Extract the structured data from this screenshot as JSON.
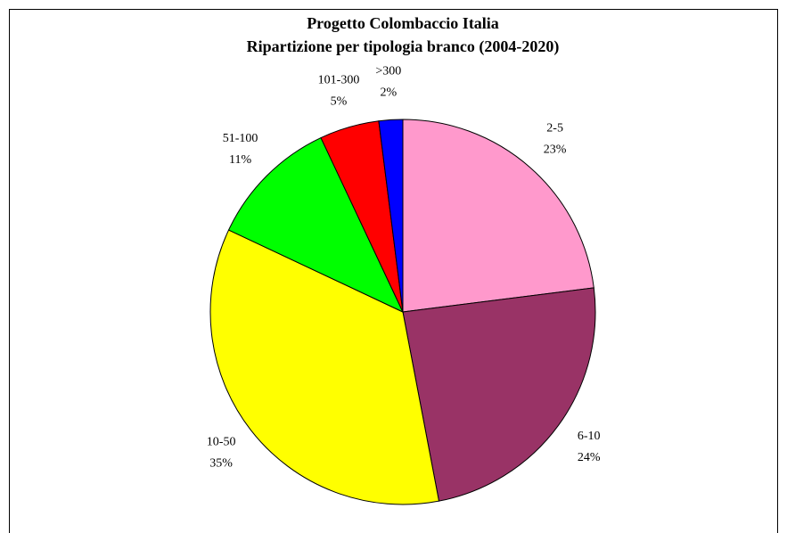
{
  "chart_data": {
    "type": "pie",
    "title": "Progetto Colombaccio Italia",
    "subtitle": "Ripartizione per tipologia branco (2004-2020)",
    "categories": [
      "2-5",
      "6-10",
      "10-50",
      "51-100",
      "101-300",
      ">300"
    ],
    "values": [
      23,
      24,
      35,
      11,
      5,
      2
    ],
    "value_labels": [
      "23%",
      "24%",
      "35%",
      "11%",
      "5%",
      "2%"
    ],
    "colors": [
      "#ff99cc",
      "#993366",
      "#ffff00",
      "#00ff00",
      "#ff0000",
      "#0000ff"
    ]
  }
}
